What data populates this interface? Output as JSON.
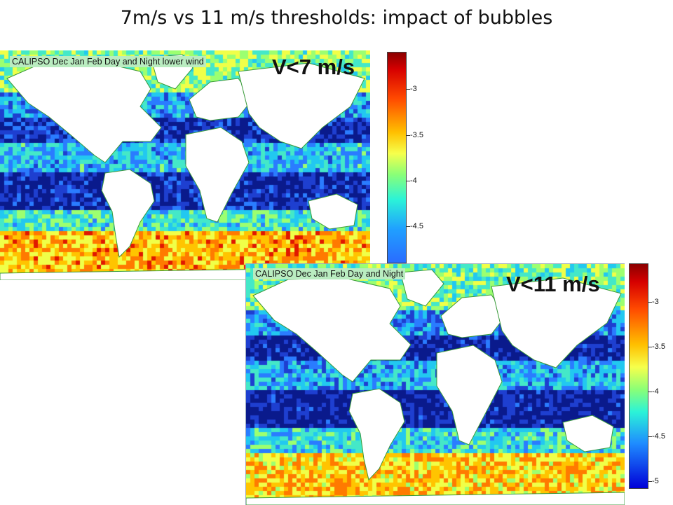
{
  "slide": {
    "title": "7m/s vs 11 m/s thresholds: impact of bubbles"
  },
  "maps": [
    {
      "caption": "CALIPSO Dec Jan Feb Day and Night lower wind",
      "wind_label": "V<7 m/s",
      "colorbar_ticks": [
        "-3",
        "-3.5",
        "-4",
        "-4.5"
      ]
    },
    {
      "caption": "CALIPSO Dec Jan Feb Day and Night",
      "wind_label": "V<11 m/s",
      "colorbar_ticks": [
        "-3",
        "-3.5",
        "-4",
        "-4.5",
        "-5"
      ]
    }
  ],
  "colors": {
    "land": "#ffffff",
    "coastline": "#3a9a3a",
    "caption_bg": "#b9ecc0"
  }
}
